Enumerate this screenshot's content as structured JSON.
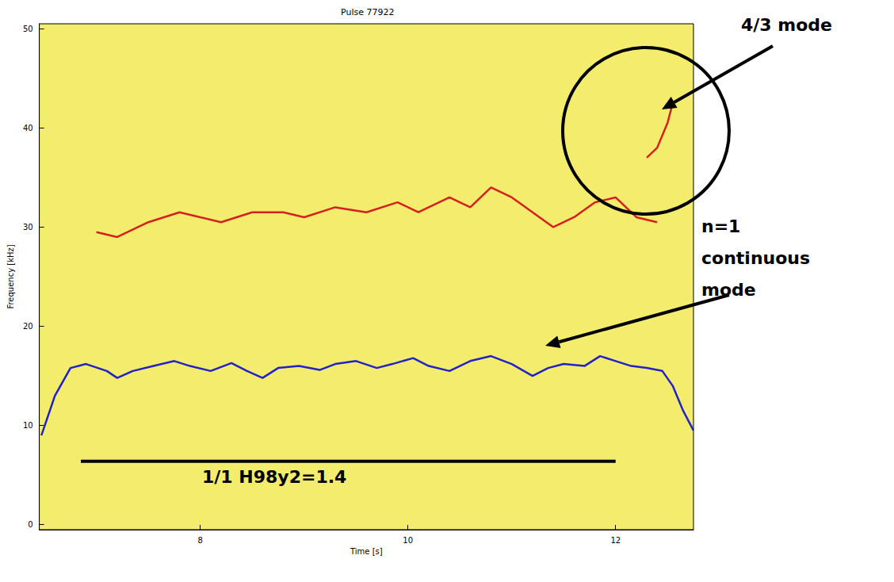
{
  "chart_data": {
    "type": "line",
    "title": "Pulse 77922",
    "x_label": "Time [s]",
    "y_label": "Frequency [kHz]",
    "xlim": [
      6.45,
      12.75
    ],
    "xticks": [
      8,
      10,
      12
    ],
    "ylim": [
      -0.5,
      50.5
    ],
    "yticks": [
      0,
      10,
      20,
      30,
      40,
      50
    ],
    "grid": false,
    "series": [
      {
        "color": "#2222c8",
        "x": [
          6.47,
          6.6,
          6.75,
          6.9,
          7.1,
          7.2,
          7.35,
          7.55,
          7.75,
          7.9,
          8.1,
          8.3,
          8.45,
          8.6,
          8.75,
          8.95,
          9.15,
          9.3,
          9.5,
          9.7,
          9.85,
          10.05,
          10.2,
          10.4,
          10.6,
          10.8,
          11.0,
          11.2,
          11.35,
          11.5,
          11.7,
          11.85,
          12.0,
          12.15,
          12.3,
          12.45,
          12.55,
          12.65,
          12.75
        ],
        "values": [
          9.0,
          13.0,
          15.8,
          16.2,
          15.5,
          14.8,
          15.5,
          16.0,
          16.5,
          16.0,
          15.5,
          16.3,
          15.5,
          14.8,
          15.8,
          16.0,
          15.6,
          16.2,
          16.5,
          15.8,
          16.2,
          16.8,
          16.0,
          15.5,
          16.5,
          17.0,
          16.2,
          15.0,
          15.8,
          16.2,
          16.0,
          17.0,
          16.5,
          16.0,
          15.8,
          15.5,
          14.0,
          11.5,
          9.5
        ]
      },
      {
        "color": "#d42020",
        "x": [
          7.0,
          7.2,
          7.5,
          7.8,
          8.0,
          8.2,
          8.5,
          8.8,
          9.0,
          9.3,
          9.6,
          9.9,
          10.1,
          10.4,
          10.6,
          10.8,
          11.0,
          11.2,
          11.4,
          11.6,
          11.8,
          12.0,
          12.2,
          12.4
        ],
        "values": [
          29.5,
          29.0,
          30.5,
          31.5,
          31.0,
          30.5,
          31.5,
          31.5,
          31.0,
          32.0,
          31.5,
          32.5,
          31.5,
          33.0,
          32.0,
          34.0,
          33.0,
          31.5,
          30.0,
          31.0,
          32.5,
          33.0,
          31.0,
          30.5
        ]
      },
      {
        "color": "#d42020",
        "x": [
          12.3,
          12.4,
          12.5,
          12.55
        ],
        "values": [
          37.0,
          38.0,
          40.5,
          42.5
        ]
      }
    ],
    "annotations": [
      {
        "text": "4/3 mode"
      },
      {
        "text": "n=1 continuous mode"
      },
      {
        "text": "1/1 H98y2=1.4",
        "x": [
          6.85,
          12.0
        ],
        "y": 6.4
      }
    ]
  }
}
